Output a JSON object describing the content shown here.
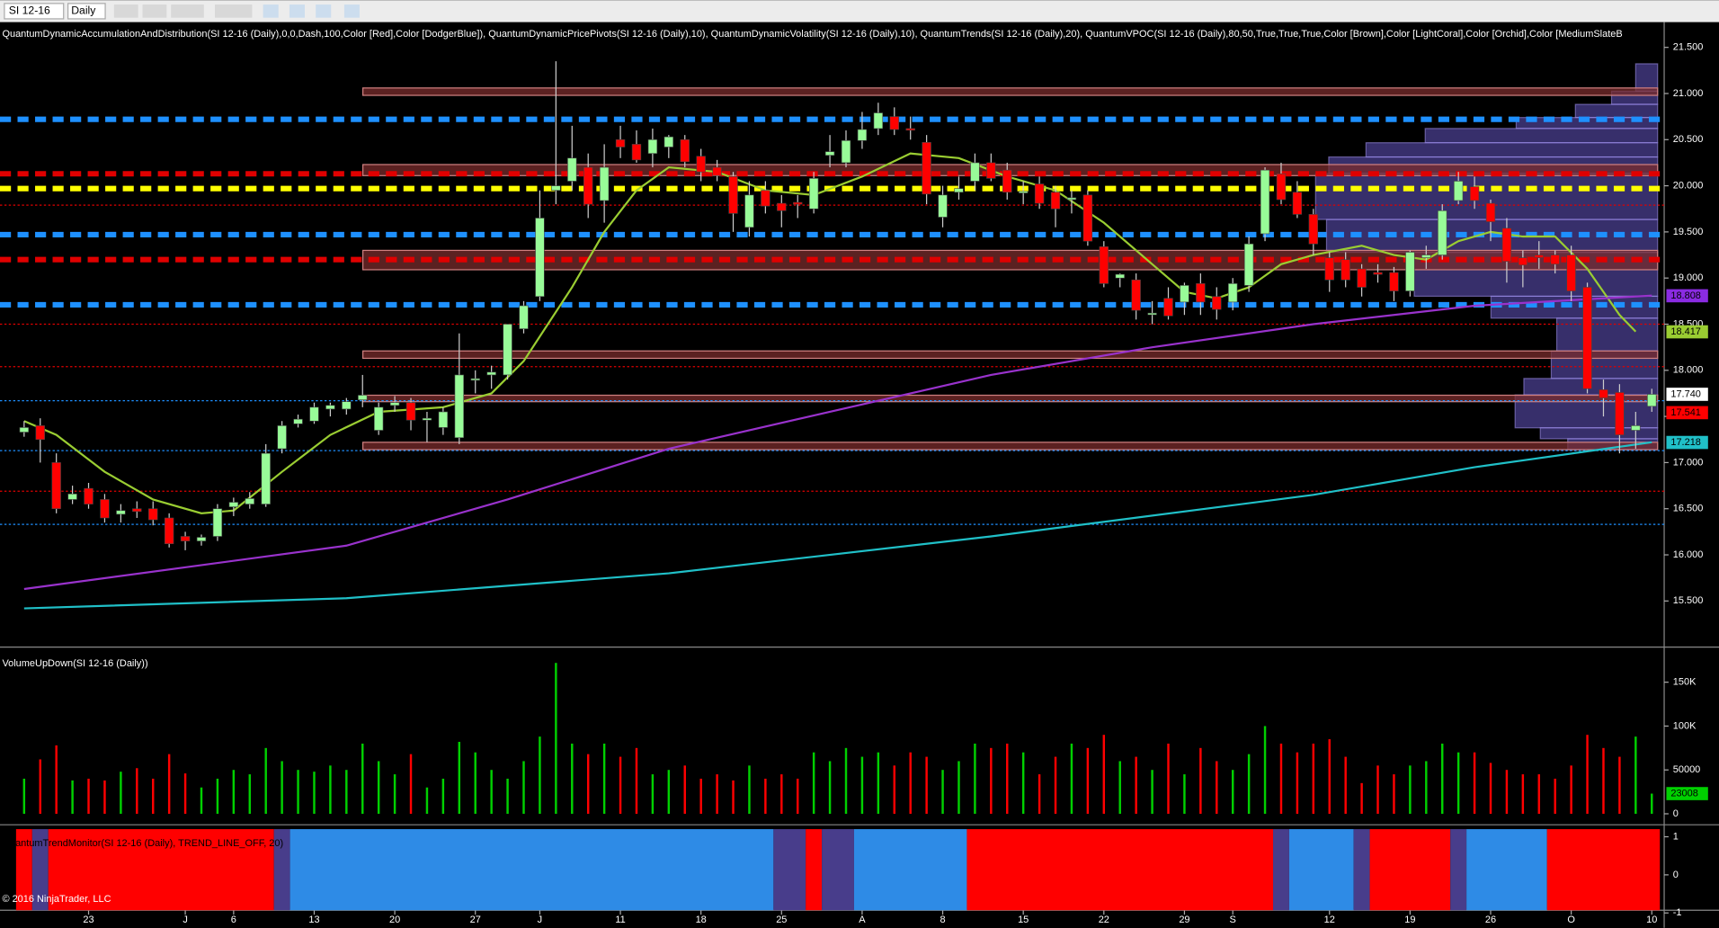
{
  "toolbar": {
    "symbol": "SI 12-16",
    "period": "Daily"
  },
  "footer": "© 2016 NinjaTrader, LLC",
  "chart_data": [
    {
      "type": "candlestick",
      "title": "QuantumDynamicAccumulationAndDistribution(SI 12-16 (Daily),0,0,Dash,100,Color [Red],Color [DodgerBlue]), QuantumDynamicPricePivots(SI 12-16 (Daily),10), QuantumDynamicVolatility(SI 12-16 (Daily),10), QuantumTrends(SI 12-16 (Daily),20), QuantumVPOC(SI 12-16 (Daily),80,50,True,True,True,Color [Brown],Color [LightCoral],Color [Orchid],Color [MediumSlateB",
      "categories": [
        null,
        null,
        null,
        null,
        "23",
        null,
        null,
        null,
        null,
        null,
        "J",
        null,
        null,
        "6",
        null,
        null,
        null,
        null,
        "13",
        null,
        null,
        null,
        null,
        "20",
        null,
        null,
        null,
        null,
        "27",
        null,
        null,
        null,
        "J",
        null,
        null,
        null,
        null,
        "11",
        null,
        null,
        null,
        null,
        "18",
        null,
        null,
        null,
        null,
        "25",
        null,
        null,
        null,
        null,
        "A",
        null,
        null,
        null,
        null,
        "8",
        null,
        null,
        null,
        null,
        "15",
        null,
        null,
        null,
        null,
        "22",
        null,
        null,
        null,
        null,
        "29",
        null,
        null,
        "S",
        null,
        null,
        null,
        null,
        null,
        "12",
        null,
        null,
        null,
        null,
        "19",
        null,
        null,
        null,
        null,
        "26",
        null,
        null,
        null,
        null,
        "O",
        null,
        null,
        null,
        null,
        "10"
      ],
      "open": [
        17.33,
        17.4,
        17.0,
        16.6,
        16.72,
        16.6,
        16.44,
        16.5,
        16.5,
        16.4,
        16.2,
        16.15,
        16.2,
        16.52,
        16.55,
        16.55,
        17.15,
        17.42,
        17.45,
        17.58,
        17.58,
        17.68,
        17.35,
        17.62,
        17.65,
        17.46,
        17.38,
        17.27,
        17.9,
        17.95,
        17.95,
        18.45,
        18.8,
        19.95,
        20.05,
        20.2,
        19.84,
        20.5,
        20.45,
        20.35,
        20.42,
        20.5,
        20.32,
        20.2,
        20.1,
        19.55,
        19.95,
        19.81,
        19.82,
        19.75,
        20.33,
        20.25,
        20.49,
        20.62,
        20.75,
        20.62,
        20.47,
        19.66,
        19.93,
        20.05,
        20.25,
        20.17,
        19.93,
        20.02,
        19.93,
        19.85,
        19.9,
        19.34,
        19.0,
        18.98,
        18.62,
        18.78,
        18.74,
        18.94,
        18.8,
        18.74,
        18.92,
        19.48,
        20.13,
        19.93,
        19.69,
        19.22,
        19.2,
        19.1,
        19.06,
        19.06,
        18.86,
        19.22,
        19.25,
        19.84,
        19.99,
        19.81,
        19.54,
        19.22,
        19.25,
        19.25,
        19.25,
        18.9,
        17.79,
        17.76,
        17.35,
        17.61
      ],
      "high": [
        17.45,
        17.48,
        17.1,
        16.75,
        16.78,
        16.66,
        16.55,
        16.58,
        16.58,
        16.45,
        16.25,
        16.22,
        16.55,
        16.62,
        16.68,
        17.2,
        17.45,
        17.52,
        17.65,
        17.65,
        17.7,
        17.95,
        17.65,
        17.72,
        17.7,
        17.55,
        17.6,
        18.4,
        18.0,
        18.05,
        18.5,
        18.75,
        19.95,
        21.35,
        20.65,
        20.35,
        20.45,
        20.65,
        20.6,
        20.62,
        20.55,
        20.55,
        20.4,
        20.28,
        20.15,
        20.05,
        20.05,
        19.9,
        19.9,
        20.15,
        20.55,
        20.6,
        20.8,
        20.9,
        20.85,
        20.75,
        20.55,
        20.0,
        20.1,
        20.35,
        20.35,
        20.25,
        20.05,
        20.1,
        20.0,
        19.95,
        19.95,
        19.4,
        19.05,
        19.05,
        18.75,
        18.9,
        18.95,
        19.05,
        18.9,
        19.0,
        19.45,
        20.2,
        20.25,
        20.05,
        19.75,
        19.28,
        19.28,
        19.15,
        19.15,
        19.12,
        19.3,
        19.35,
        19.8,
        20.15,
        20.1,
        19.85,
        19.65,
        19.3,
        19.4,
        19.3,
        19.35,
        18.95,
        17.9,
        17.85,
        17.55,
        17.8
      ],
      "low": [
        17.28,
        17.0,
        16.45,
        16.55,
        16.5,
        16.35,
        16.35,
        16.4,
        16.32,
        16.08,
        16.05,
        16.1,
        16.15,
        16.42,
        16.5,
        16.52,
        17.1,
        17.38,
        17.42,
        17.5,
        17.52,
        17.6,
        17.3,
        17.55,
        17.35,
        17.22,
        17.3,
        17.2,
        17.75,
        17.8,
        17.9,
        18.4,
        18.75,
        19.8,
        19.95,
        19.65,
        19.6,
        20.3,
        20.25,
        20.2,
        20.3,
        20.2,
        20.05,
        20.05,
        19.5,
        19.45,
        19.7,
        19.55,
        19.65,
        19.7,
        20.2,
        20.2,
        20.4,
        20.55,
        20.55,
        20.5,
        19.8,
        19.55,
        19.85,
        19.95,
        20.05,
        19.85,
        19.8,
        19.75,
        19.55,
        19.7,
        19.35,
        18.9,
        18.9,
        18.55,
        18.5,
        18.55,
        18.6,
        18.6,
        18.55,
        18.65,
        18.85,
        19.4,
        19.8,
        19.65,
        19.25,
        18.85,
        18.9,
        18.8,
        18.95,
        18.75,
        18.8,
        19.1,
        19.2,
        19.8,
        19.75,
        19.4,
        18.95,
        18.9,
        19.1,
        19.05,
        18.75,
        17.75,
        17.5,
        17.1,
        17.15,
        17.55
      ],
      "close": [
        17.38,
        17.25,
        16.5,
        16.66,
        16.55,
        16.4,
        16.48,
        16.47,
        16.38,
        16.12,
        16.15,
        16.19,
        16.5,
        16.57,
        16.61,
        17.1,
        17.4,
        17.47,
        17.6,
        17.62,
        17.66,
        17.73,
        17.6,
        17.65,
        17.46,
        17.48,
        17.55,
        17.95,
        17.91,
        17.98,
        18.5,
        18.7,
        19.65,
        20.0,
        20.3,
        19.8,
        20.2,
        20.42,
        20.28,
        20.5,
        20.53,
        20.26,
        20.15,
        20.11,
        19.7,
        19.9,
        19.78,
        19.73,
        19.8,
        20.08,
        20.37,
        20.49,
        20.61,
        20.79,
        20.61,
        20.61,
        19.91,
        19.9,
        19.97,
        20.25,
        20.08,
        19.93,
        19.94,
        19.81,
        19.75,
        19.87,
        19.4,
        18.94,
        19.04,
        18.65,
        18.62,
        18.59,
        18.92,
        18.74,
        18.66,
        18.94,
        19.37,
        20.17,
        19.85,
        19.69,
        19.37,
        18.98,
        18.98,
        18.9,
        19.04,
        18.86,
        19.28,
        19.25,
        19.73,
        20.05,
        19.84,
        19.61,
        19.18,
        19.14,
        19.22,
        19.15,
        18.86,
        17.8,
        17.7,
        17.3,
        17.4,
        17.74
      ],
      "up_color": "#98fb98",
      "down_color": "#ff0000",
      "lines": [
        {
          "color": "#9acd32",
          "x": [
            0,
            2,
            5,
            8,
            11,
            13,
            16,
            19,
            22,
            26,
            29,
            31,
            34,
            36,
            38,
            40,
            43,
            46,
            49,
            52,
            55,
            58,
            61,
            64,
            67,
            70,
            72,
            74,
            76,
            78,
            80,
            83,
            85,
            87,
            89,
            91,
            93,
            95,
            97,
            99,
            100
          ],
          "values": [
            17.45,
            17.3,
            16.9,
            16.6,
            16.45,
            16.48,
            16.9,
            17.3,
            17.55,
            17.6,
            17.75,
            18.1,
            18.9,
            19.5,
            19.95,
            20.2,
            20.15,
            19.95,
            19.9,
            20.1,
            20.35,
            20.3,
            20.1,
            19.95,
            19.6,
            19.15,
            18.85,
            18.78,
            18.9,
            19.15,
            19.25,
            19.35,
            19.25,
            19.2,
            19.4,
            19.5,
            19.45,
            19.45,
            19.1,
            18.6,
            18.42
          ]
        },
        {
          "color": "#9932cc",
          "x": [
            0,
            20,
            30,
            40,
            50,
            60,
            70,
            80,
            90,
            101
          ],
          "values": [
            15.63,
            16.1,
            16.6,
            17.15,
            17.55,
            17.95,
            18.25,
            18.5,
            18.7,
            18.81
          ]
        },
        {
          "color": "#20c0c8",
          "x": [
            0,
            20,
            40,
            60,
            80,
            90,
            101
          ],
          "values": [
            15.42,
            15.53,
            15.8,
            16.2,
            16.65,
            16.95,
            17.22
          ]
        }
      ],
      "levels": [
        {
          "value": 20.72,
          "color": "#1e90ff",
          "style": "dash"
        },
        {
          "value": 19.47,
          "color": "#1e90ff",
          "style": "dash"
        },
        {
          "value": 18.71,
          "color": "#1e90ff",
          "style": "dash"
        },
        {
          "value": 20.13,
          "color": "#e00000",
          "style": "dash"
        },
        {
          "value": 19.2,
          "color": "#e00000",
          "style": "dash"
        },
        {
          "value": 19.97,
          "color": "#ffff00",
          "style": "dash"
        },
        {
          "value": 17.67,
          "color": "#1e90ff",
          "style": "dot"
        },
        {
          "value": 17.13,
          "color": "#1e90ff",
          "style": "dot"
        },
        {
          "value": 16.33,
          "color": "#1e90ff",
          "style": "dot"
        },
        {
          "value": 19.79,
          "color": "#e00000",
          "style": "dot"
        },
        {
          "value": 18.5,
          "color": "#e00000",
          "style": "dot"
        },
        {
          "value": 18.04,
          "color": "#e00000",
          "style": "dot"
        },
        {
          "value": 16.69,
          "color": "#e00000",
          "style": "dot"
        }
      ],
      "zones": [
        {
          "from": 20.98,
          "to": 21.06
        },
        {
          "from": 20.11,
          "to": 20.23
        },
        {
          "from": 19.09,
          "to": 19.3
        },
        {
          "from": 18.13,
          "to": 18.21
        },
        {
          "from": 17.66,
          "to": 17.73
        },
        {
          "from": 17.14,
          "to": 17.22
        }
      ],
      "price_labels": [
        {
          "value": 18.808,
          "color": "#8a2be2"
        },
        {
          "value": 18.417,
          "color": "#9acd32"
        },
        {
          "value": 17.74,
          "label": "17.740",
          "color": "#ffffff"
        },
        {
          "value": 17.541,
          "color": "#ff0000"
        },
        {
          "value": 17.218,
          "color": "#20c0c8"
        }
      ],
      "ylim": [
        15.0,
        21.75
      ],
      "yticks": [
        {
          "value": 15.5,
          "label": "15.500"
        },
        {
          "value": 16,
          "label": "16.000"
        },
        {
          "value": 16.5,
          "label": "16.500"
        },
        {
          "value": 17,
          "label": "17.000"
        },
        {
          "value": 17.5,
          "label": "17.500"
        },
        {
          "value": 18,
          "label": "18.000"
        },
        {
          "value": 18.5,
          "label": "18.500"
        },
        {
          "value": 19,
          "label": "19.000"
        },
        {
          "value": 19.5,
          "label": "19.500"
        },
        {
          "value": 20,
          "label": "20.000"
        },
        {
          "value": 20.5,
          "label": "20.500"
        },
        {
          "value": 21,
          "label": "21.000"
        },
        {
          "value": 21.5,
          "label": "21.500"
        }
      ]
    },
    {
      "type": "bar",
      "title": "VolumeUpDown(SI 12-16 (Daily))",
      "values": [
        40000,
        62000,
        78000,
        38000,
        40000,
        38000,
        48000,
        52000,
        40000,
        68000,
        46000,
        30000,
        40000,
        50000,
        45000,
        75000,
        60000,
        50000,
        48000,
        55000,
        50000,
        80000,
        60000,
        45000,
        68000,
        30000,
        40000,
        82000,
        70000,
        50000,
        40000,
        60000,
        88000,
        172000,
        80000,
        68000,
        80000,
        65000,
        75000,
        45000,
        50000,
        55000,
        40000,
        45000,
        38000,
        55000,
        40000,
        45000,
        40000,
        70000,
        60000,
        75000,
        65000,
        70000,
        55000,
        70000,
        65000,
        50000,
        60000,
        80000,
        75000,
        80000,
        70000,
        45000,
        65000,
        80000,
        75000,
        90000,
        60000,
        65000,
        50000,
        80000,
        45000,
        75000,
        60000,
        50000,
        68000,
        100000,
        80000,
        70000,
        80000,
        85000,
        65000,
        35000,
        55000,
        45000,
        55000,
        60000,
        80000,
        70000,
        70000,
        58000,
        50000,
        45000,
        45000,
        40000,
        55000,
        90000,
        75000,
        65000,
        88000,
        23008
      ],
      "up_color": "#00d000",
      "down_color": "#ff0000",
      "ylim": [
        -10000,
        187500
      ],
      "yticks": [
        0,
        50000,
        {
          "value": 100000,
          "label": "100K"
        },
        {
          "value": 150000,
          "label": "150K"
        }
      ]
    },
    {
      "type": "band",
      "title": "QuantumTrendMonitor(SI 12-16 (Daily), TREND_LINE_OFF, 20)",
      "segments": [
        {
          "from": 0,
          "to": 0,
          "color": "#ff0000"
        },
        {
          "from": 1,
          "to": 1,
          "color": "#483d8b"
        },
        {
          "from": 2,
          "to": 15,
          "color": "#ff0000"
        },
        {
          "from": 16,
          "to": 16,
          "color": "#483d8b"
        },
        {
          "from": 17,
          "to": 46,
          "color": "#2e8be6"
        },
        {
          "from": 47,
          "to": 48,
          "color": "#483d8b"
        },
        {
          "from": 49,
          "to": 49,
          "color": "#ff0000"
        },
        {
          "from": 50,
          "to": 51,
          "color": "#483d8b"
        },
        {
          "from": 52,
          "to": 58,
          "color": "#2e8be6"
        },
        {
          "from": 59,
          "to": 77,
          "color": "#ff0000"
        },
        {
          "from": 78,
          "to": 78,
          "color": "#483d8b"
        },
        {
          "from": 79,
          "to": 82,
          "color": "#2e8be6"
        },
        {
          "from": 83,
          "to": 83,
          "color": "#483d8b"
        },
        {
          "from": 84,
          "to": 88,
          "color": "#ff0000"
        },
        {
          "from": 89,
          "to": 89,
          "color": "#483d8b"
        },
        {
          "from": 90,
          "to": 94,
          "color": "#2e8be6"
        },
        {
          "from": 95,
          "to": 101,
          "color": "#ff0000"
        }
      ],
      "ylim": [
        -0.93,
        1.2
      ],
      "yticks": [
        -1,
        0,
        1
      ]
    }
  ]
}
